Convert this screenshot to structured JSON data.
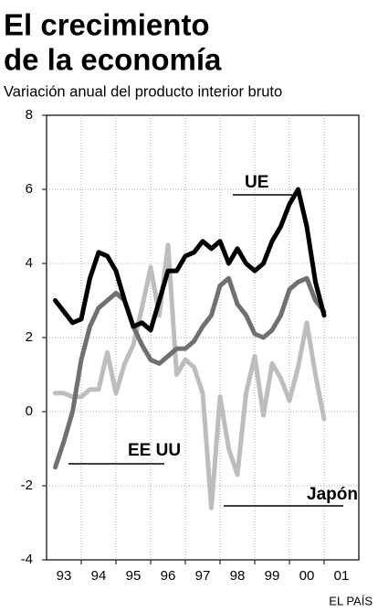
{
  "chart_data": {
    "type": "line",
    "title": [
      "El crecimiento",
      "de la economía"
    ],
    "subtitle": "Variación anual del producto interior bruto",
    "source": "EL PAÍS",
    "x": [
      1993.25,
      1993.5,
      1993.75,
      1994,
      1994.25,
      1994.5,
      1994.75,
      1995,
      1995.25,
      1995.5,
      1995.75,
      1996,
      1996.25,
      1996.5,
      1996.75,
      1997,
      1997.25,
      1997.5,
      1997.75,
      1998,
      1998.25,
      1998.5,
      1998.75,
      1999,
      1999.25,
      1999.5,
      1999.75,
      2000,
      2000.25,
      2000.5,
      2000.75,
      2001
    ],
    "series": [
      {
        "name": "UE",
        "color": "#000000",
        "values": [
          3.0,
          2.7,
          2.4,
          2.5,
          3.6,
          4.3,
          4.2,
          3.8,
          3.0,
          2.3,
          2.4,
          2.2,
          3.0,
          3.8,
          3.8,
          4.2,
          4.3,
          4.6,
          4.4,
          4.6,
          4.0,
          4.4,
          4.0,
          3.8,
          4.0,
          4.6,
          5.0,
          5.6,
          6.0,
          5.0,
          3.5,
          2.6
        ]
      },
      {
        "name": "EE UU",
        "color": "#707070",
        "values": [
          -1.5,
          -0.8,
          0.0,
          1.4,
          2.3,
          2.8,
          3.0,
          3.2,
          3.0,
          2.3,
          1.8,
          1.4,
          1.3,
          1.5,
          1.7,
          1.7,
          1.9,
          2.3,
          2.6,
          3.4,
          3.6,
          2.9,
          2.6,
          2.1,
          2.0,
          2.2,
          2.6,
          3.3,
          3.5,
          3.6,
          3.0,
          2.7
        ]
      },
      {
        "name": "Japón",
        "color": "#bdbdbd",
        "values": [
          0.5,
          0.5,
          0.4,
          0.4,
          0.6,
          0.6,
          1.6,
          0.5,
          1.3,
          1.8,
          2.8,
          3.9,
          2.6,
          4.5,
          1.0,
          1.4,
          1.2,
          0.5,
          -2.6,
          0.4,
          -1.0,
          -1.7,
          0.5,
          1.5,
          -0.1,
          1.3,
          0.9,
          0.3,
          1.2,
          2.4,
          1.0,
          -0.2
        ]
      }
    ],
    "xlim": [
      1993,
      2002
    ],
    "xticks": [
      {
        "value": 1993.5,
        "label": "93"
      },
      {
        "value": 1994.5,
        "label": "94"
      },
      {
        "value": 1995.5,
        "label": "95"
      },
      {
        "value": 1996.5,
        "label": "96"
      },
      {
        "value": 1997.5,
        "label": "97"
      },
      {
        "value": 1998.5,
        "label": "98"
      },
      {
        "value": 1999.5,
        "label": "99"
      },
      {
        "value": 2000.5,
        "label": "00"
      },
      {
        "value": 2001.5,
        "label": "01"
      }
    ],
    "xgrid": [
      1994,
      1995,
      1996,
      1997,
      1998,
      1999,
      2000,
      2001
    ],
    "ylim": [
      -4,
      8
    ],
    "yticks": [
      -4,
      -2,
      0,
      2,
      4,
      6,
      8
    ],
    "grid": true
  }
}
